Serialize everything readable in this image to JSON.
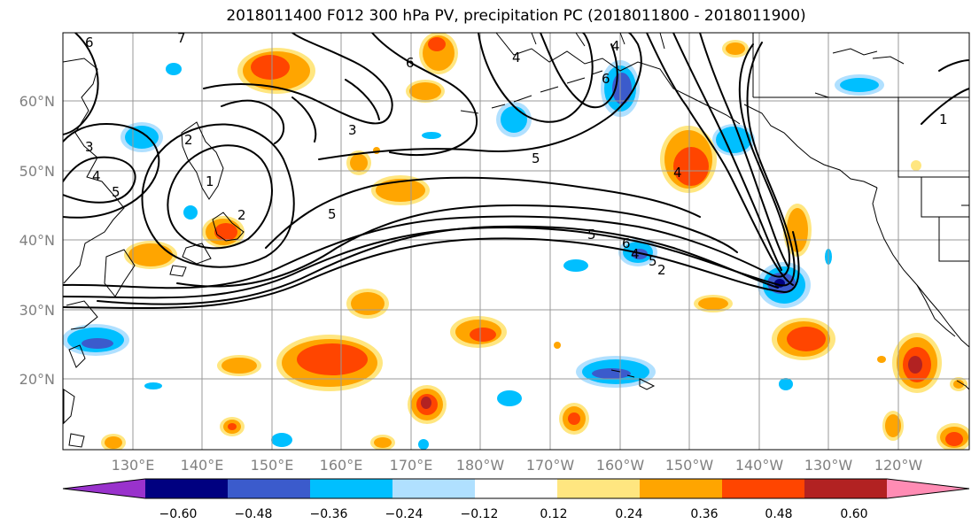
{
  "title": "2018011400 F012 300 hPa PV, precipitation PC (2018011800 - 2018011900)",
  "map": {
    "lat_labels": [
      "60°N",
      "50°N",
      "40°N",
      "30°N",
      "20°N"
    ],
    "lon_labels": [
      "130°E",
      "140°E",
      "150°E",
      "160°E",
      "170°E",
      "180°W",
      "170°W",
      "160°W",
      "150°W",
      "140°W",
      "130°W",
      "120°W"
    ],
    "contour_labels": [
      "6",
      "6",
      "3",
      "4",
      "5",
      "5",
      "3",
      "2",
      "5",
      "5",
      "6",
      "4",
      "6",
      "4",
      "2",
      "1",
      "1",
      "4",
      "5",
      "4",
      "2",
      "7"
    ]
  },
  "colorbar": {
    "colors": [
      "#9932cc",
      "#000080",
      "#3b5bcc",
      "#00bfff",
      "#b0e0ff",
      "#ffffff",
      "#ffe680",
      "#ffa500",
      "#ff4500",
      "#b22222",
      "#ff8cb4"
    ],
    "tick_labels": [
      "−0.60",
      "−0.48",
      "−0.36",
      "−0.24",
      "−0.12",
      "0.12",
      "0.24",
      "0.36",
      "0.48",
      "0.60"
    ]
  },
  "styles": {
    "neg_strong": "#3b5bcc",
    "neg_mid": "#00bfff",
    "neg_weak": "#b0e0ff",
    "pos_weak": "#ffe680",
    "pos_mid": "#ffa500",
    "pos_strong": "#ff4500",
    "pos_max": "#b22222",
    "grid": "#999999",
    "label_color": "#808080"
  }
}
